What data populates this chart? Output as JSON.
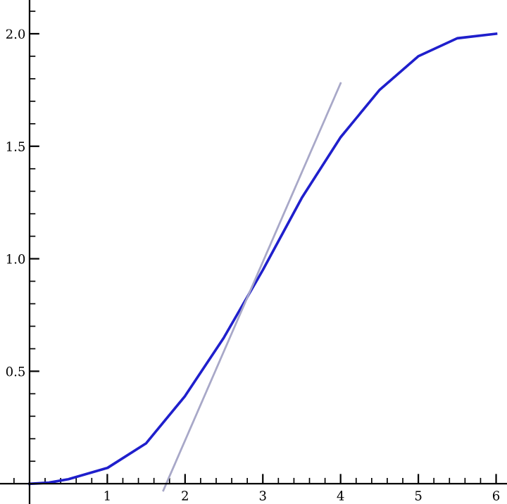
{
  "chart_data": {
    "type": "line",
    "xlim": [
      -0.38,
      6.14
    ],
    "ylim": [
      -0.09,
      2.15
    ],
    "xticks": [
      1,
      2,
      3,
      4,
      5,
      6
    ],
    "yticks": [
      {
        "value": 0.5,
        "label": "0.5"
      },
      {
        "value": 1.0,
        "label": "1.0"
      },
      {
        "value": 1.5,
        "label": "1.5"
      },
      {
        "value": 2.0,
        "label": "2.0"
      }
    ],
    "grid": false,
    "legend": false,
    "line_style": "solid",
    "marker": "none",
    "series": [
      {
        "color": "#1f1fcc",
        "x": [
          0,
          0.25,
          0.5,
          1,
          1.5,
          2,
          2.5,
          3,
          3.5,
          4,
          4.5,
          5,
          5.5,
          6
        ],
        "values": [
          0,
          0.005,
          0.02,
          0.07,
          0.18,
          0.39,
          0.65,
          0.95,
          1.27,
          1.54,
          1.75,
          1.9,
          1.98,
          2.0
        ]
      },
      {
        "color": "#a8a8c8",
        "x": [
          1.72,
          4.0
        ],
        "values": [
          -0.03,
          1.78
        ]
      }
    ]
  }
}
